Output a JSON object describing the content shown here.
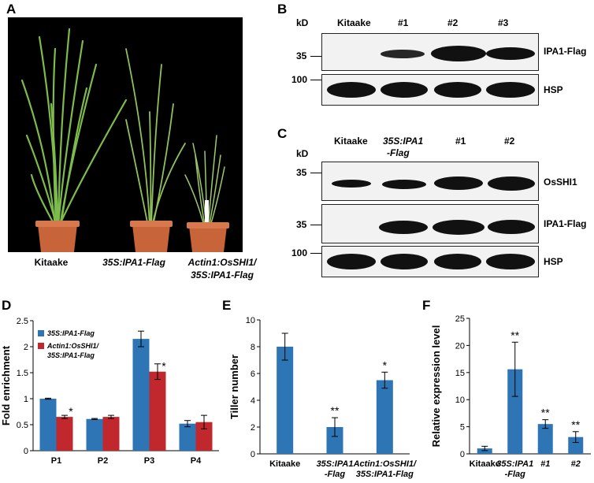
{
  "panels": {
    "A": "A",
    "B": "B",
    "C": "C",
    "D": "D",
    "E": "E",
    "F": "F"
  },
  "photo_captions": {
    "kitaake": "Kitaake",
    "ipa1": "35S:IPA1-Flag",
    "shi1_line1": "Actin1:OsSHI1/",
    "shi1_line2": "35S:IPA1-Flag"
  },
  "blot_b": {
    "kd": "kD",
    "lanes": [
      "Kitaake",
      "#1",
      "#2",
      "#3"
    ],
    "markers": [
      "35",
      "100"
    ],
    "rows": [
      "IPA1-Flag",
      "HSP"
    ]
  },
  "blot_c": {
    "kd": "kD",
    "lanes": [
      "Kitaake",
      "35S:IPA1",
      "-Flag",
      "#1",
      "#2"
    ],
    "markers": [
      "35",
      "35",
      "100"
    ],
    "rows": [
      "OsSHI1",
      "IPA1-Flag",
      "HSP"
    ]
  },
  "chart_data": [
    {
      "panel": "D",
      "type": "bar",
      "ylabel": "Fold enrichment",
      "ylim": [
        0,
        2.5
      ],
      "yticks": [
        "0",
        "0.5",
        "1",
        "1.5",
        "2",
        "2.5"
      ],
      "categories": [
        "P1",
        "P2",
        "P3",
        "P4"
      ],
      "legend": [
        "35S:IPA1-Flag",
        "Actin1:OsSHI1/",
        "35S:IPA1-Flag"
      ],
      "colors": [
        "#2e75b6",
        "#c0282d"
      ],
      "series": [
        {
          "name": "35S:IPA1-Flag",
          "values": [
            1.0,
            0.61,
            2.15,
            0.52
          ],
          "errors": [
            0.01,
            0.01,
            0.15,
            0.06
          ]
        },
        {
          "name": "Actin1:OsSHI1/35S:IPA1-Flag",
          "values": [
            0.65,
            0.65,
            1.52,
            0.55
          ],
          "errors": [
            0.03,
            0.03,
            0.15,
            0.13
          ]
        }
      ],
      "significance": [
        "*",
        "",
        "*",
        ""
      ]
    },
    {
      "panel": "E",
      "type": "bar",
      "ylabel": "Tiller number",
      "ylim": [
        0,
        10
      ],
      "yticks": [
        "0",
        "2",
        "4",
        "6",
        "8",
        "10"
      ],
      "categories": [
        "Kitaake",
        "35S:IPA1-Flag",
        "Actin1:OsSHI1/35S:IPA1-Flag"
      ],
      "category_lines": [
        [
          "Kitaake"
        ],
        [
          "35S:IPA1",
          "-Flag"
        ],
        [
          "Actin1:OsSHI1/",
          "35S:IPA1-Flag"
        ]
      ],
      "values": [
        8.0,
        2.0,
        5.5
      ],
      "errors": [
        1.0,
        0.7,
        0.6
      ],
      "significance": [
        "",
        "**",
        "*"
      ],
      "colors": [
        "#2e75b6"
      ]
    },
    {
      "panel": "F",
      "type": "bar",
      "ylabel": "Relative expression level",
      "ylim": [
        0,
        25
      ],
      "yticks": [
        "0",
        "5",
        "10",
        "15",
        "20",
        "25"
      ],
      "categories": [
        "Kitaake",
        "35S:IPA1-Flag",
        "#1",
        "#2"
      ],
      "category_lines": [
        [
          "Kitaake"
        ],
        [
          "35S:IPA1",
          "-Flag"
        ],
        [
          "#1"
        ],
        [
          "#2"
        ]
      ],
      "values": [
        1.0,
        15.6,
        5.5,
        3.1
      ],
      "errors": [
        0.4,
        5.0,
        0.8,
        1.0
      ],
      "significance": [
        "",
        "**",
        "**",
        "**"
      ],
      "colors": [
        "#2e75b6"
      ]
    }
  ]
}
